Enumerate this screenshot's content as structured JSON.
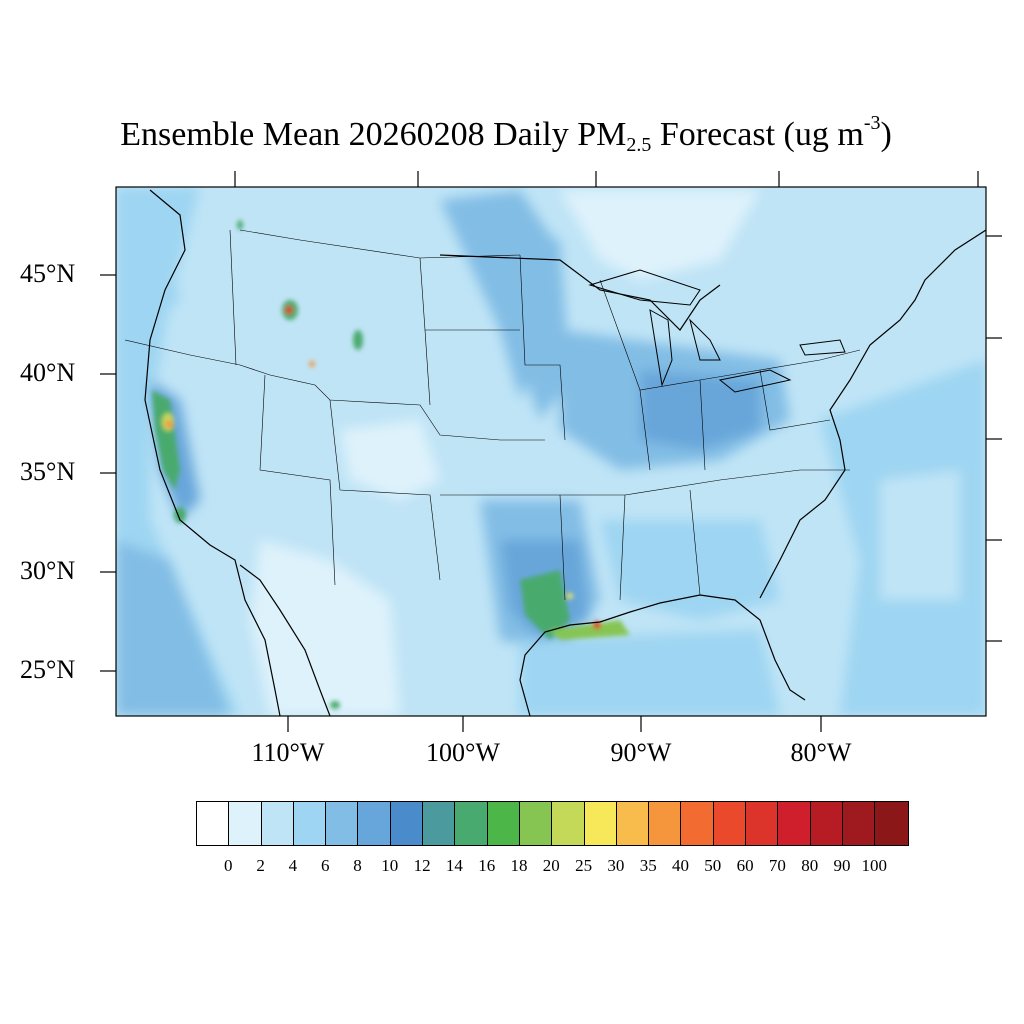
{
  "title": {
    "main": "Ensemble Mean 20260208 Daily PM",
    "subscript": "2.5",
    "after": " Forecast (ug m",
    "superscript": "-3",
    "close": ")"
  },
  "lat_labels": [
    "45°N",
    "40°N",
    "35°N",
    "30°N",
    "25°N"
  ],
  "lon_labels": [
    "110°W",
    "100°W",
    "90°W",
    "80°W"
  ],
  "colorbar": {
    "labels": [
      "0",
      "2",
      "4",
      "6",
      "8",
      "10",
      "12",
      "14",
      "16",
      "18",
      "20",
      "25",
      "30",
      "35",
      "40",
      "50",
      "60",
      "70",
      "80",
      "90",
      "100"
    ],
    "colors": [
      "#ffffff",
      "#def2fb",
      "#bfe4f6",
      "#9ed5f2",
      "#82bde5",
      "#67a6da",
      "#4a8ccb",
      "#4a9a9e",
      "#48aa6e",
      "#4cb748",
      "#86c552",
      "#c5d959",
      "#f6e859",
      "#f7bc4b",
      "#f5953c",
      "#f26b30",
      "#ea4a2b",
      "#dc342a",
      "#cf1f2c",
      "#b71b24",
      "#9e1a1f",
      "#8b1719"
    ]
  },
  "map_colors": {
    "background": "#bfe4f6",
    "light": "#def2fb",
    "medium": "#9ed5f2",
    "dark": "#82bde5",
    "darker": "#67a6da",
    "green": "#48aa6e",
    "green_light": "#86c552",
    "yellow": "#f6e859",
    "orange": "#f5953c",
    "red": "#dc342a"
  }
}
